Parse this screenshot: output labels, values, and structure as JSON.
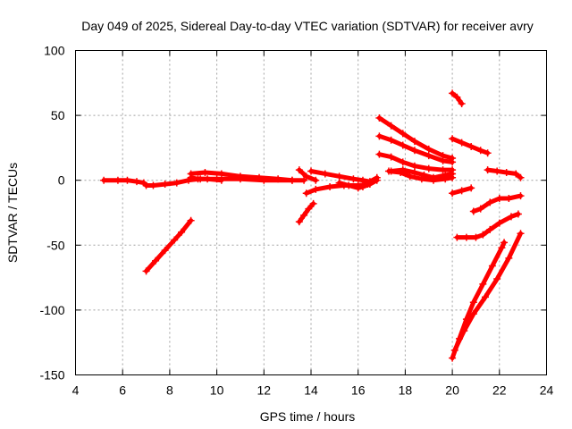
{
  "chart_data": {
    "type": "scatter",
    "title": "Day 049 of 2025, Sidereal Day-to-day VTEC variation (SDTVAR) for receiver avry",
    "xlabel": "GPS time / hours",
    "ylabel": "SDTVAR / TECUs",
    "xlim": [
      4,
      24
    ],
    "ylim": [
      -150,
      100
    ],
    "xticks": [
      4,
      6,
      8,
      10,
      12,
      14,
      16,
      18,
      20,
      22,
      24
    ],
    "yticks": [
      -150,
      -100,
      -50,
      0,
      50,
      100
    ],
    "grid": true,
    "marker": "plus",
    "color": "#ff0000",
    "series": [
      {
        "points": [
          [
            5.2,
            0
          ],
          [
            5.8,
            0
          ],
          [
            6.2,
            0
          ],
          [
            6.6,
            -1
          ],
          [
            6.9,
            -2
          ],
          [
            7.0,
            -4
          ],
          [
            7.3,
            -4
          ],
          [
            7.8,
            -3
          ],
          [
            8.3,
            -2
          ],
          [
            8.8,
            0
          ],
          [
            9.3,
            1
          ],
          [
            10.0,
            1
          ],
          [
            11.0,
            1
          ],
          [
            12.0,
            0
          ],
          [
            13.2,
            0
          ],
          [
            13.7,
            0
          ]
        ]
      },
      {
        "points": [
          [
            8.9,
            5
          ],
          [
            9.5,
            6
          ],
          [
            10.2,
            5
          ],
          [
            11.0,
            3
          ],
          [
            11.8,
            2
          ],
          [
            12.6,
            1
          ],
          [
            13.2,
            0
          ]
        ]
      },
      {
        "points": [
          [
            8.9,
            2
          ],
          [
            9.2,
            1
          ],
          [
            9.6,
            1
          ],
          [
            10.2,
            0
          ]
        ]
      },
      {
        "points": [
          [
            7.0,
            -70
          ],
          [
            7.4,
            -62
          ],
          [
            7.8,
            -54
          ],
          [
            8.2,
            -46
          ],
          [
            8.5,
            -40
          ],
          [
            8.9,
            -31
          ]
        ]
      },
      {
        "points": [
          [
            13.5,
            8
          ],
          [
            13.8,
            3
          ],
          [
            14.2,
            0
          ]
        ]
      },
      {
        "points": [
          [
            13.5,
            -32
          ],
          [
            13.7,
            -27
          ],
          [
            13.9,
            -22
          ],
          [
            14.1,
            -18
          ]
        ]
      },
      {
        "points": [
          [
            13.8,
            -10
          ],
          [
            14.2,
            -7
          ],
          [
            14.8,
            -5
          ],
          [
            15.4,
            -4
          ],
          [
            16.0,
            -4
          ],
          [
            16.4,
            -3
          ]
        ]
      },
      {
        "points": [
          [
            14.0,
            7
          ],
          [
            14.6,
            5
          ],
          [
            15.2,
            3
          ],
          [
            15.8,
            1
          ],
          [
            16.2,
            0
          ],
          [
            16.5,
            -1
          ],
          [
            16.8,
            2
          ]
        ]
      },
      {
        "points": [
          [
            15.2,
            -2
          ],
          [
            15.6,
            -4
          ],
          [
            16.0,
            -6
          ],
          [
            16.2,
            -5
          ],
          [
            16.5,
            -3
          ],
          [
            16.8,
            0
          ]
        ]
      },
      {
        "points": [
          [
            16.9,
            48
          ],
          [
            17.4,
            42
          ],
          [
            17.9,
            36
          ],
          [
            18.4,
            30
          ],
          [
            19.0,
            24
          ],
          [
            19.6,
            19
          ],
          [
            20.0,
            17
          ]
        ]
      },
      {
        "points": [
          [
            16.9,
            34
          ],
          [
            17.4,
            31
          ],
          [
            17.9,
            27
          ],
          [
            18.4,
            23
          ],
          [
            19.0,
            19
          ],
          [
            19.6,
            15
          ],
          [
            20.0,
            14
          ]
        ]
      },
      {
        "points": [
          [
            16.9,
            20
          ],
          [
            17.4,
            18
          ],
          [
            17.9,
            14
          ],
          [
            18.4,
            11
          ],
          [
            19.0,
            9
          ],
          [
            19.6,
            8
          ],
          [
            20.0,
            8
          ]
        ]
      },
      {
        "points": [
          [
            17.3,
            7
          ],
          [
            17.8,
            6
          ],
          [
            18.2,
            3
          ],
          [
            18.7,
            1
          ],
          [
            19.2,
            0
          ],
          [
            19.7,
            1
          ],
          [
            20.0,
            2
          ]
        ]
      },
      {
        "points": [
          [
            17.4,
            7
          ],
          [
            17.9,
            8
          ],
          [
            18.4,
            6
          ],
          [
            18.8,
            4
          ],
          [
            19.2,
            2
          ],
          [
            19.7,
            4
          ],
          [
            20.0,
            5
          ]
        ]
      },
      {
        "points": [
          [
            20.0,
            67
          ],
          [
            20.2,
            64
          ],
          [
            20.4,
            59
          ]
        ]
      },
      {
        "points": [
          [
            20.0,
            32
          ],
          [
            20.4,
            29
          ],
          [
            20.8,
            26
          ],
          [
            21.2,
            23
          ],
          [
            21.5,
            21
          ]
        ]
      },
      {
        "points": [
          [
            20.0,
            -10
          ],
          [
            20.4,
            -8
          ],
          [
            20.8,
            -6
          ]
        ]
      },
      {
        "points": [
          [
            20.2,
            -44
          ],
          [
            20.6,
            -44
          ],
          [
            21.0,
            -44
          ],
          [
            21.3,
            -42
          ],
          [
            21.6,
            -38
          ],
          [
            22.0,
            -33
          ],
          [
            22.5,
            -28
          ],
          [
            22.8,
            -26
          ]
        ]
      },
      {
        "points": [
          [
            20.9,
            -24
          ],
          [
            21.2,
            -22
          ],
          [
            21.6,
            -17
          ],
          [
            22.0,
            -14
          ],
          [
            22.4,
            -14
          ],
          [
            22.9,
            -12
          ]
        ]
      },
      {
        "points": [
          [
            21.5,
            8
          ],
          [
            21.9,
            7
          ],
          [
            22.3,
            6
          ],
          [
            22.7,
            5
          ],
          [
            22.9,
            2
          ]
        ]
      },
      {
        "points": [
          [
            20.0,
            -137
          ],
          [
            20.3,
            -122
          ],
          [
            20.6,
            -107
          ],
          [
            20.9,
            -94
          ],
          [
            21.3,
            -80
          ],
          [
            21.7,
            -66
          ],
          [
            22.1,
            -52
          ],
          [
            22.2,
            -48
          ]
        ]
      },
      {
        "points": [
          [
            20.1,
            -131
          ],
          [
            20.5,
            -116
          ],
          [
            20.9,
            -103
          ],
          [
            21.4,
            -90
          ],
          [
            21.9,
            -76
          ],
          [
            22.4,
            -60
          ],
          [
            22.9,
            -41
          ]
        ]
      }
    ]
  }
}
